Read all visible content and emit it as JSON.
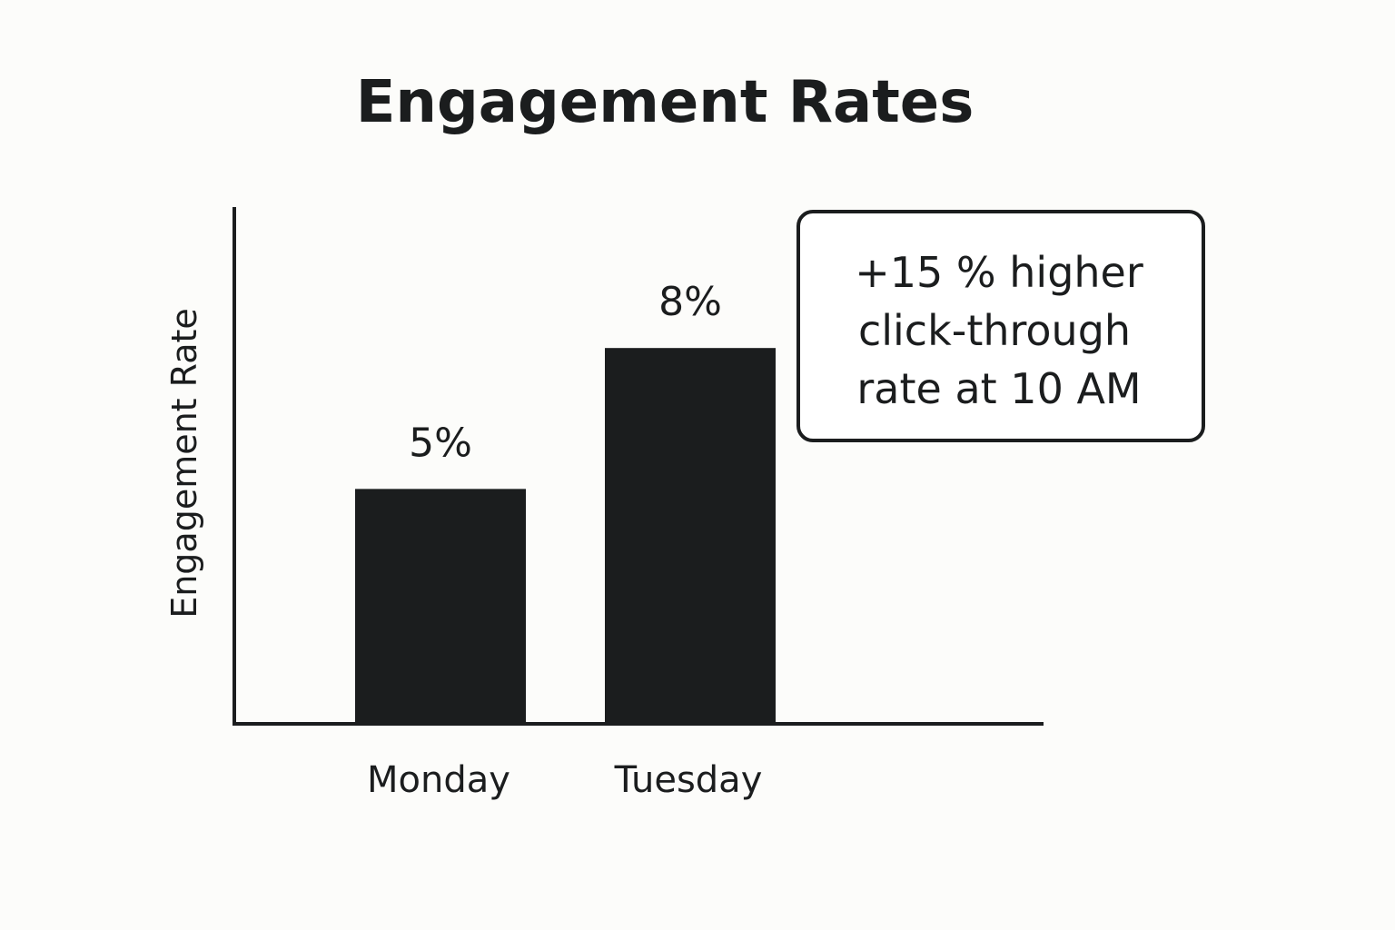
{
  "chart_data": {
    "type": "bar",
    "title": "Engagement Rates",
    "ylabel": "Engagement Rate",
    "xlabel": "",
    "categories": [
      "Monday",
      "Tuesday"
    ],
    "values": [
      5,
      8
    ],
    "value_labels": [
      "5%",
      "8%"
    ],
    "ylim": [
      0,
      11
    ],
    "grid": false,
    "bar_color": "#1b1d1e",
    "annotation": {
      "lines": [
        "+15 % higher",
        "click-through",
        "rate at 10 AM"
      ],
      "placement": "top-right"
    }
  }
}
